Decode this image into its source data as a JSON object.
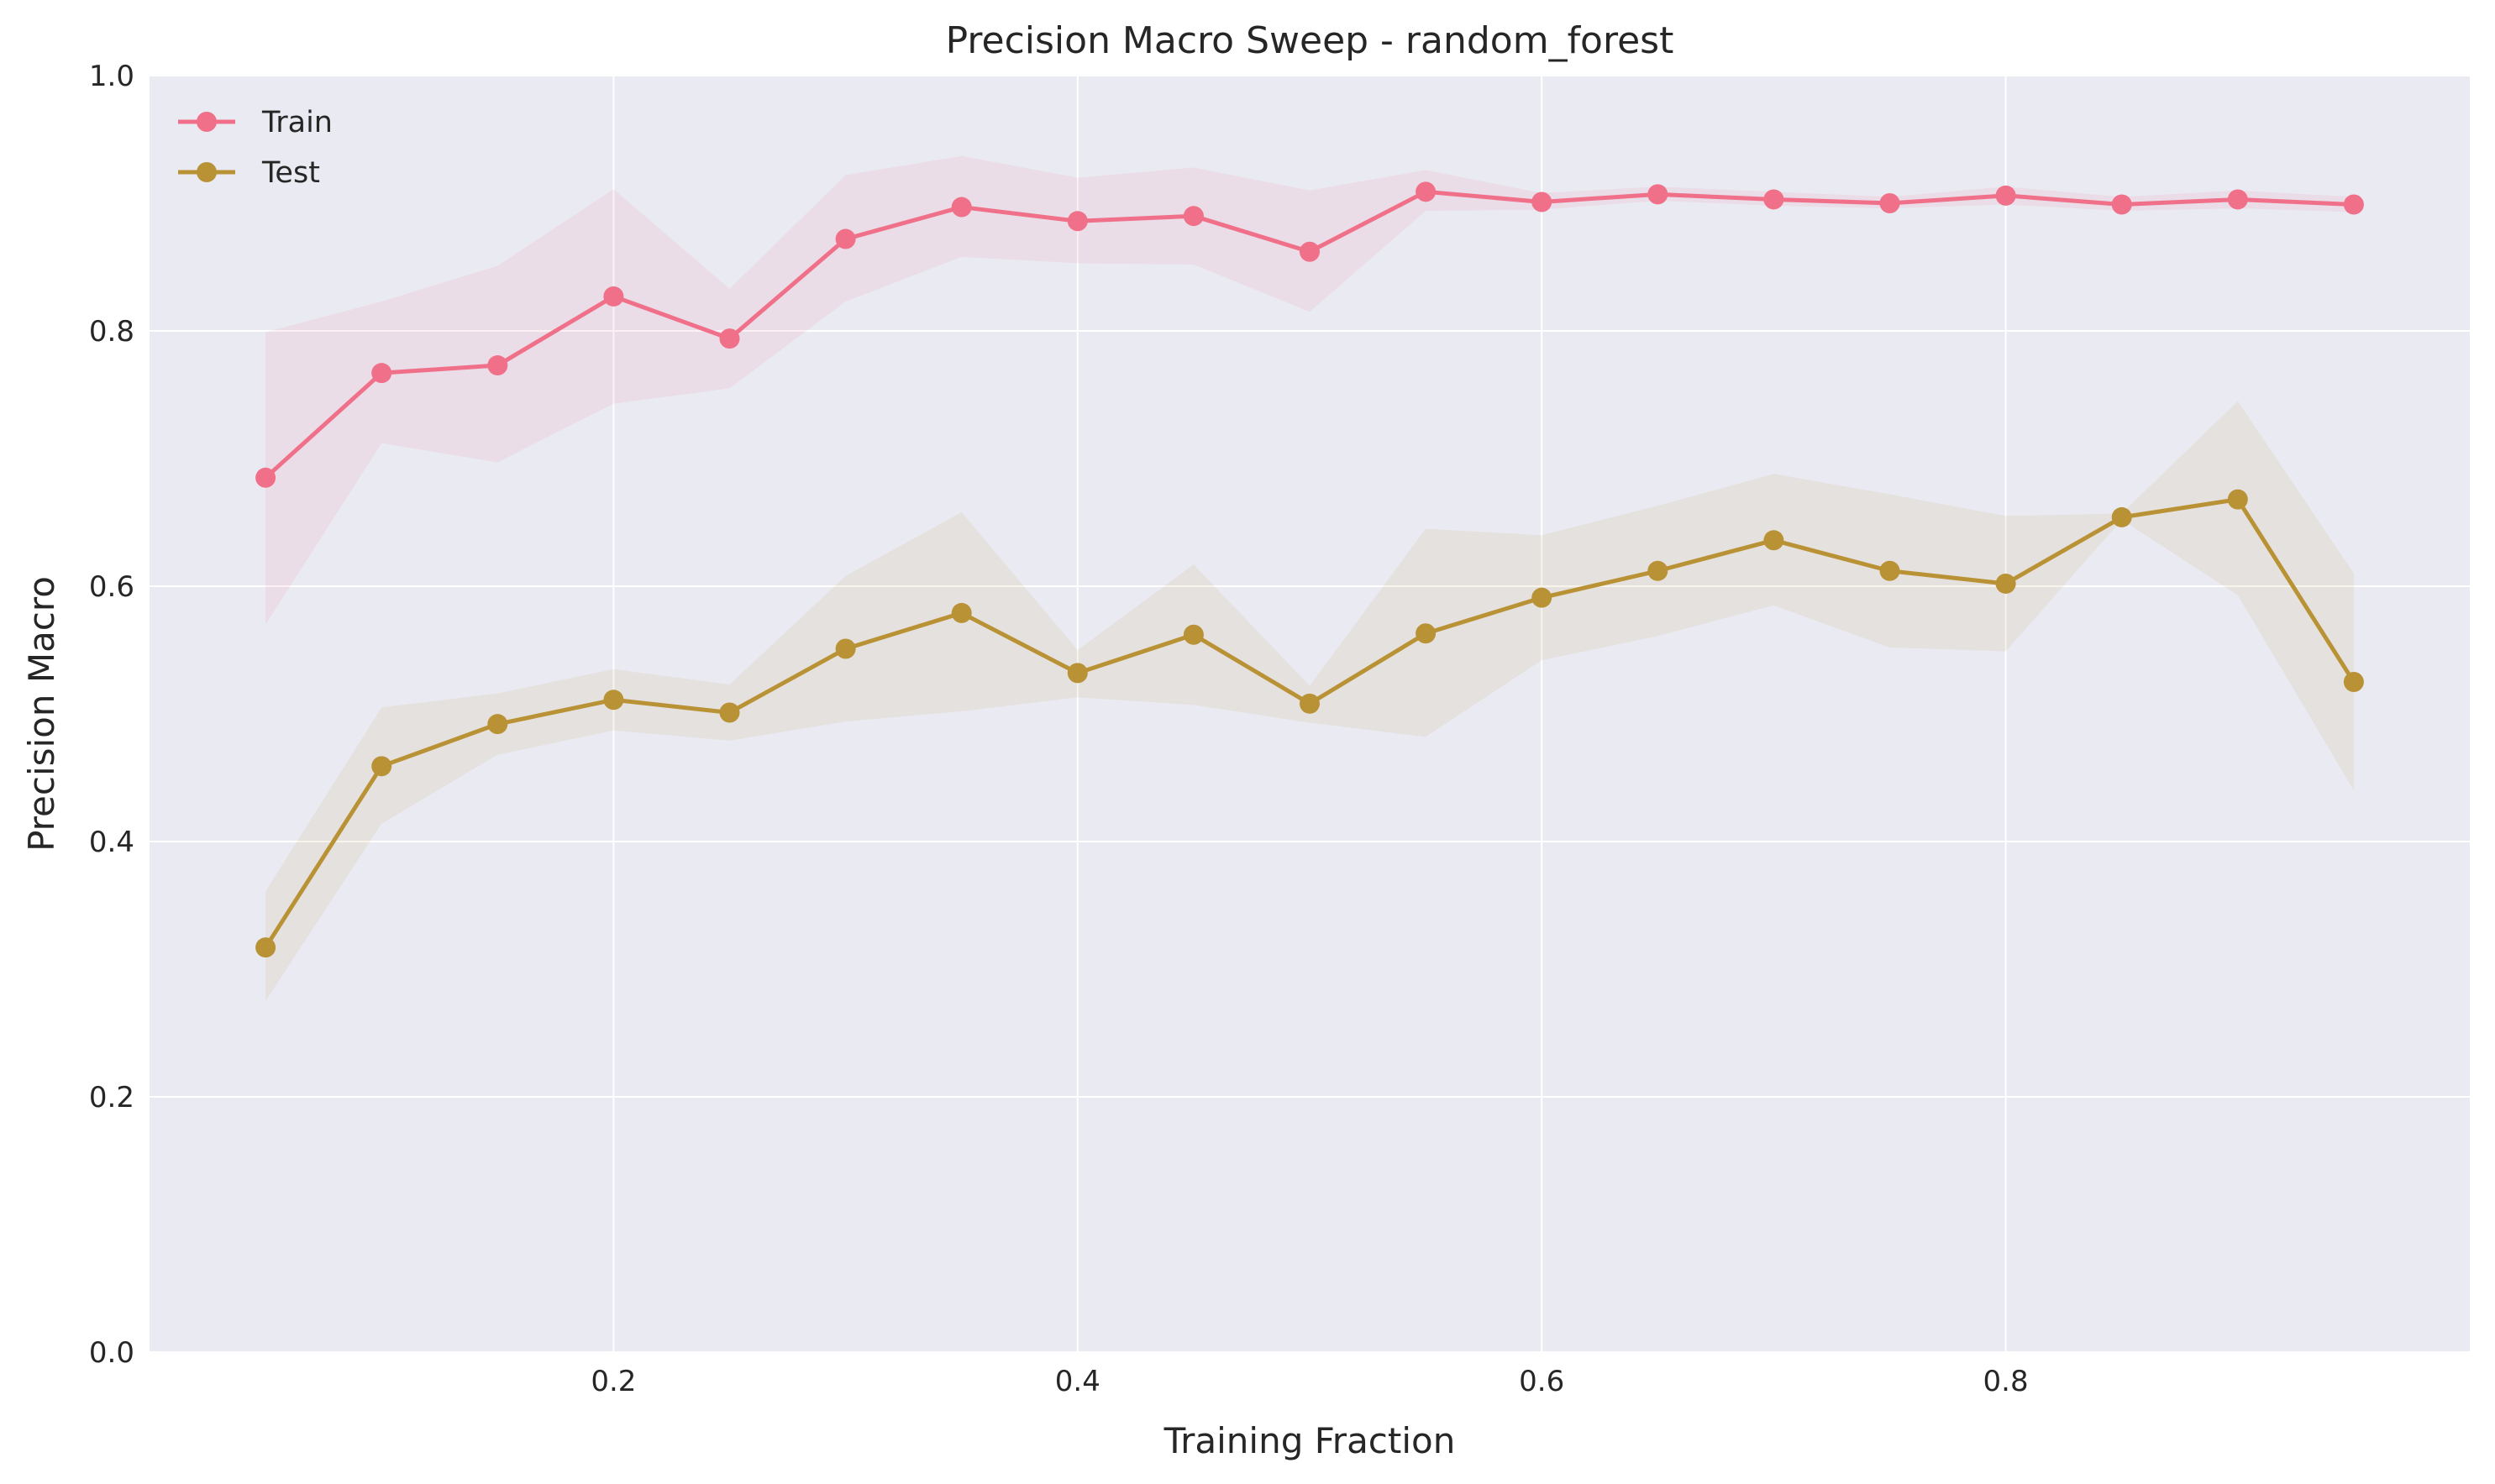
{
  "chart_data": {
    "type": "line",
    "title": "Precision Macro Sweep - random_forest",
    "xlabel": "Training Fraction",
    "ylabel": "Precision Macro",
    "xlim": [
      0.0,
      1.0
    ],
    "ylim": [
      0.0,
      1.0
    ],
    "xticks": [
      0.2,
      0.4,
      0.6,
      0.8
    ],
    "xtick_labels": [
      "0.2",
      "0.4",
      "0.6",
      "0.8"
    ],
    "yticks": [
      0.0,
      0.2,
      0.4,
      0.6,
      0.8,
      1.0
    ],
    "ytick_labels": [
      "0.0",
      "0.2",
      "0.4",
      "0.6",
      "0.8",
      "1.0"
    ],
    "grid": true,
    "legend_position": "top-left",
    "background_color": "#eaeaf2",
    "x": [
      0.05,
      0.1,
      0.15,
      0.2,
      0.25,
      0.3,
      0.35,
      0.4,
      0.45,
      0.5,
      0.55,
      0.6,
      0.65,
      0.7,
      0.75,
      0.8,
      0.85,
      0.9,
      0.95
    ],
    "series": [
      {
        "name": "Train",
        "color": "#f0708a",
        "values": [
          0.685,
          0.767,
          0.773,
          0.827,
          0.794,
          0.872,
          0.897,
          0.886,
          0.89,
          0.862,
          0.909,
          0.901,
          0.907,
          0.903,
          0.9,
          0.906,
          0.899,
          0.903,
          0.899
        ],
        "lower": [
          0.57,
          0.712,
          0.697,
          0.743,
          0.755,
          0.823,
          0.858,
          0.853,
          0.852,
          0.815,
          0.894,
          0.895,
          0.902,
          0.898,
          0.896,
          0.899,
          0.894,
          0.896,
          0.893
        ],
        "upper": [
          0.799,
          0.823,
          0.851,
          0.911,
          0.833,
          0.922,
          0.937,
          0.92,
          0.928,
          0.91,
          0.926,
          0.908,
          0.913,
          0.909,
          0.905,
          0.913,
          0.905,
          0.91,
          0.905
        ]
      },
      {
        "name": "Test",
        "color": "#b89235",
        "values": [
          0.317,
          0.459,
          0.492,
          0.511,
          0.501,
          0.551,
          0.579,
          0.532,
          0.562,
          0.508,
          0.563,
          0.591,
          0.612,
          0.636,
          0.612,
          0.602,
          0.654,
          0.668,
          0.525
        ],
        "lower": [
          0.275,
          0.414,
          0.468,
          0.487,
          0.479,
          0.494,
          0.502,
          0.513,
          0.507,
          0.493,
          0.482,
          0.542,
          0.561,
          0.585,
          0.552,
          0.549,
          0.652,
          0.593,
          0.44
        ],
        "upper": [
          0.361,
          0.505,
          0.516,
          0.535,
          0.523,
          0.608,
          0.658,
          0.55,
          0.617,
          0.522,
          0.645,
          0.64,
          0.663,
          0.688,
          0.672,
          0.655,
          0.657,
          0.745,
          0.61
        ]
      }
    ]
  }
}
